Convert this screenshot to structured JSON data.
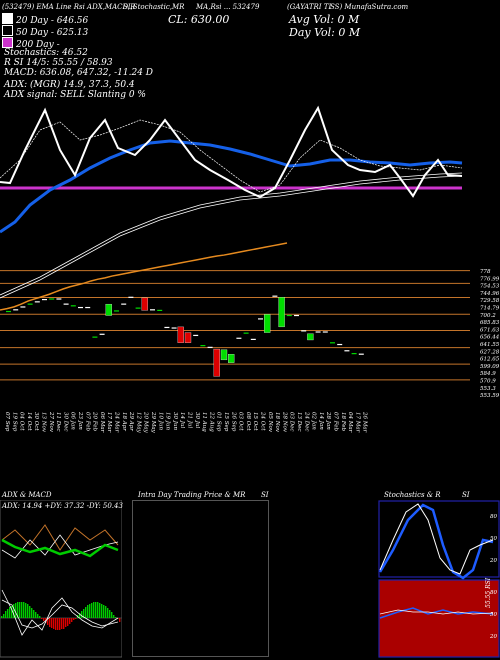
{
  "header": {
    "line1_left": "(532479) EMA Line Rsi ADX,MACD,R",
    "line1_mid": "SI,Stochastic,MR",
    "line1_right": "MA,Rsi ... 532479",
    "line1_name": "(GAYATRI TI",
    "line1_site": "SS) MunafaSutra.com",
    "close_label": "CL: 630.00",
    "avg_vol": "Avg Vol: 0  M",
    "day_vol": "Day Vol: 0  M",
    "legend": [
      {
        "label": "20  Day - 646.56",
        "color": "#ffffff"
      },
      {
        "label": "50  Day - 625.13",
        "color": "#000000"
      },
      {
        "label": "200  Day - ",
        "color": "#cc33cc"
      }
    ],
    "stoch": "Stochastics: 46.52",
    "rsi_line": "R                    SI 14/5: 55.55 / 58.93",
    "macd_line": "MACD: 636.08, 647.32, -11.24  D",
    "adx_line": "ADX:                          (MGR) 14.9, 37.3, 50.4",
    "adx_signal": "ADX  signal: SELL  Slanting  0 %"
  },
  "price_axis": [
    "778",
    "776.99",
    "754.53",
    "744.96",
    "729.58",
    "714.79",
    "700.2",
    "685.83",
    "671.63",
    "656.44",
    "641.55",
    "627.28",
    "612.65",
    "599.09",
    "584.9",
    "570.9",
    "553.3",
    "553.59"
  ],
  "date_labels": [
    "07 Sep",
    "19 Sep",
    "04 Oct",
    "14 Oct",
    "30 Oct",
    "13 Nov",
    "27 Nov",
    "11 Dec",
    "30 Dec",
    "06 Jan",
    "23 Jan",
    "07 Feb",
    "20 Feb",
    "06 Mar",
    "17 Mar",
    "24 Mar",
    "18 Apr",
    "29 Apr",
    "12 May",
    "20 May",
    "29 May",
    "10 Jun",
    "19 Jun",
    "30 Jun",
    "14 Jul",
    "21 Jul",
    "30 Jul",
    "11 Aug",
    "22 Aug",
    "01 Sep",
    "15 Sep",
    "26 Sep",
    "03 Oct",
    "08 Oct",
    "15 Oct",
    "24 Oct",
    "05 Nov",
    "18 Nov",
    "28 Nov",
    "03 Dec",
    "13 Dec",
    "24 Dec",
    "02 Jan",
    "14 Jan",
    "28 Jan",
    "07 Feb",
    "18 Feb",
    "04 Mar",
    "17 Mar",
    "26 Mar"
  ],
  "panels": {
    "adx_title": "ADX  & MACD",
    "adx_values": "ADX: 14.94  +DY: 37.32  -DY: 50.43",
    "intra_title": "Intra  Day Trading Price  & MR",
    "intra_title_suffix": "SI",
    "stoch_title": "Stochastics & R",
    "stoch_title_suffix": "SI",
    "stoch_ticks": [
      "80",
      "50",
      "20"
    ],
    "rsi_ticks": [
      "80",
      "50",
      "20"
    ],
    "rsi_value": "55.55 RSI"
  },
  "colors": {
    "ema20": "#ffffff",
    "ema50": "#1560e8",
    "ema200": "#cc33cc",
    "sma": "#e58a1f",
    "up": "#00dd00",
    "down": "#dd0000",
    "grid": "#c4742a",
    "rsi_bg": "#aa0000",
    "stoch_border": "#2222aa"
  },
  "chart_data": {
    "type": "candlestick",
    "note_range": "price axis 553 – 778",
    "ylim": [
      553,
      778
    ],
    "candles": [
      {
        "o": 705,
        "c": 705
      },
      {
        "o": 708,
        "c": 708
      },
      {
        "o": 713,
        "c": 713
      },
      {
        "o": 718,
        "c": 718
      },
      {
        "o": 722,
        "c": 722
      },
      {
        "o": 726,
        "c": 726
      },
      {
        "o": 727,
        "c": 727
      },
      {
        "o": 727,
        "c": 727
      },
      {
        "o": 718,
        "c": 718
      },
      {
        "o": 715,
        "c": 715
      },
      {
        "o": 712,
        "c": 712
      },
      {
        "o": 712,
        "c": 712
      },
      {
        "o": 660,
        "c": 660
      },
      {
        "o": 665,
        "c": 665
      },
      {
        "o": 698,
        "c": 718
      },
      {
        "o": 706,
        "c": 706
      },
      {
        "o": 718,
        "c": 718
      },
      {
        "o": 730,
        "c": 730
      },
      {
        "o": 711,
        "c": 711
      },
      {
        "o": 729,
        "c": 707
      },
      {
        "o": 708,
        "c": 708
      },
      {
        "o": 707,
        "c": 707
      },
      {
        "o": 677,
        "c": 677
      },
      {
        "o": 676,
        "c": 676
      },
      {
        "o": 678,
        "c": 650
      },
      {
        "o": 668,
        "c": 650
      },
      {
        "o": 663,
        "c": 663
      },
      {
        "o": 645,
        "c": 645
      },
      {
        "o": 642,
        "c": 642
      },
      {
        "o": 639,
        "c": 591
      },
      {
        "o": 620,
        "c": 638
      },
      {
        "o": 615,
        "c": 630
      },
      {
        "o": 658,
        "c": 658
      },
      {
        "o": 667,
        "c": 667
      },
      {
        "o": 656,
        "c": 656
      },
      {
        "o": 692,
        "c": 692
      },
      {
        "o": 668,
        "c": 700
      },
      {
        "o": 732,
        "c": 732
      },
      {
        "o": 678,
        "c": 730
      },
      {
        "o": 698,
        "c": 698
      },
      {
        "o": 698,
        "c": 698
      },
      {
        "o": 671,
        "c": 671
      },
      {
        "o": 655,
        "c": 666
      },
      {
        "o": 669,
        "c": 669
      },
      {
        "o": 669,
        "c": 669
      },
      {
        "o": 650,
        "c": 650
      },
      {
        "o": 647,
        "c": 647
      },
      {
        "o": 636,
        "c": 636
      },
      {
        "o": 631,
        "c": 631
      },
      {
        "o": 630,
        "c": 630
      }
    ],
    "levels": [
      776.99,
      754.53,
      729.58,
      700.2,
      671.63,
      641.55,
      612.65,
      584.9
    ],
    "sma_line": [
      625,
      628,
      632,
      638,
      645,
      650,
      655,
      660,
      666,
      672,
      677,
      681,
      685,
      690,
      694,
      697,
      701,
      704,
      707,
      710,
      713,
      716,
      719,
      722,
      725,
      728,
      731,
      734,
      737,
      740,
      743,
      746,
      748,
      751,
      754,
      757,
      760,
      763,
      766,
      769,
      772,
      775
    ]
  }
}
